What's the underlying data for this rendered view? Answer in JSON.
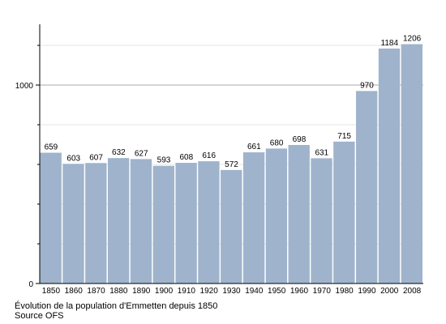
{
  "chart_data": {
    "type": "bar",
    "categories": [
      "1850",
      "1860",
      "1870",
      "1880",
      "1890",
      "1900",
      "1910",
      "1920",
      "1930",
      "1940",
      "1950",
      "1960",
      "1970",
      "1980",
      "1990",
      "2000",
      "2008"
    ],
    "values": [
      659,
      603,
      607,
      632,
      627,
      593,
      608,
      616,
      572,
      661,
      680,
      698,
      631,
      715,
      970,
      1184,
      1206
    ],
    "title": "",
    "xlabel": "",
    "ylabel": "",
    "ylim": [
      0,
      1300
    ],
    "yticks": [
      0,
      1000
    ],
    "grid": true,
    "legend": "none",
    "bar_color": "#9fb3cc",
    "grid_color": "#cccccc"
  },
  "caption": {
    "title": "Évolution de la population d'Emmetten depuis 1850",
    "source": "Source OFS"
  }
}
